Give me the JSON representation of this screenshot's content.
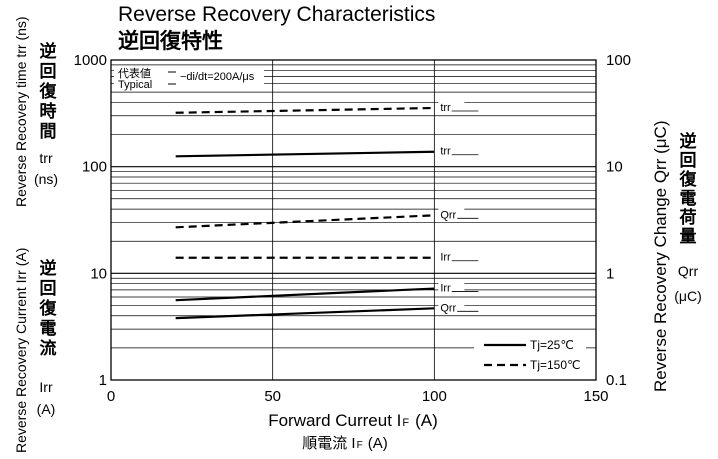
{
  "chart_data": {
    "type": "line",
    "title": "Reverse Recovery Characteristics",
    "subtitle": "逆回復特性",
    "annotation": {
      "typical_jp": "代表値",
      "typical_en": "Typical",
      "condition": "−di/dt=200A/μs"
    },
    "xlabel": "Forward Curreut I",
    "xlabel_sub": "F",
    "xlabel_unit": "(A)",
    "xlabel_jp": "順電流 I",
    "xlabel_jp_sub": "F",
    "xlabel_jp_unit": "(A)",
    "xlim": [
      0,
      150
    ],
    "x_ticks": [
      {
        "value": 0,
        "label": "0"
      },
      {
        "value": 50,
        "label": "50"
      },
      {
        "value": 100,
        "label": "100"
      },
      {
        "value": 150,
        "label": "150"
      }
    ],
    "ylim": [
      1,
      1000
    ],
    "y_scale": "log",
    "y_ticks_left": [
      {
        "value": 1,
        "label": "1"
      },
      {
        "value": 10,
        "label": "10"
      },
      {
        "value": 100,
        "label": "100"
      },
      {
        "value": 1000,
        "label": "1000"
      }
    ],
    "y_ticks_right": [
      {
        "value": 1,
        "label": "0.1"
      },
      {
        "value": 10,
        "label": "1"
      },
      {
        "value": 100,
        "label": "10"
      },
      {
        "value": 1000,
        "label": "100"
      }
    ],
    "ylabel_left_top": "Reverse Recovery time trr (ns)",
    "ylabel_left_top_jp": [
      "逆",
      "回",
      "復",
      "時",
      "間"
    ],
    "ylabel_left_top_sym": "trr",
    "ylabel_left_top_unit": "(ns)",
    "ylabel_left_bottom": "Reverse Recovery Current Irr (A)",
    "ylabel_left_bottom_jp": [
      "逆",
      "回",
      "復",
      "電",
      "流"
    ],
    "ylabel_left_bottom_sym": "Irr",
    "ylabel_left_bottom_unit": "(A)",
    "ylabel_right": "Reverse Recovery Change Qrr (μC)",
    "ylabel_right_jp": [
      "逆",
      "回",
      "復",
      "電",
      "荷",
      "量"
    ],
    "ylabel_right_sym": "Qrr",
    "ylabel_right_unit": "(μC)",
    "grid": true,
    "legend_position": "bottom-right",
    "legend": [
      {
        "label": "Tj=25℃",
        "style": "solid"
      },
      {
        "label": "Tj=150℃",
        "style": "dashed"
      }
    ],
    "series": [
      {
        "name": "trr",
        "temp": "Tj=150℃",
        "style": "dashed",
        "x": [
          20,
          100
        ],
        "y": [
          320,
          355
        ]
      },
      {
        "name": "trr",
        "temp": "Tj=25℃",
        "style": "solid",
        "x": [
          20,
          100
        ],
        "y": [
          125,
          138
        ]
      },
      {
        "name": "Qrr",
        "temp": "Tj=150℃",
        "style": "dashed",
        "x": [
          20,
          100
        ],
        "y": [
          27,
          35
        ]
      },
      {
        "name": "Irr",
        "temp": "Tj=150℃",
        "style": "dashed",
        "x": [
          20,
          100
        ],
        "y": [
          14,
          14
        ]
      },
      {
        "name": "Irr",
        "temp": "Tj=25℃",
        "style": "solid",
        "x": [
          20,
          100
        ],
        "y": [
          5.6,
          7.2
        ]
      },
      {
        "name": "Qrr",
        "temp": "Tj=25℃",
        "style": "solid",
        "x": [
          20,
          100
        ],
        "y": [
          3.8,
          4.7
        ]
      }
    ]
  }
}
